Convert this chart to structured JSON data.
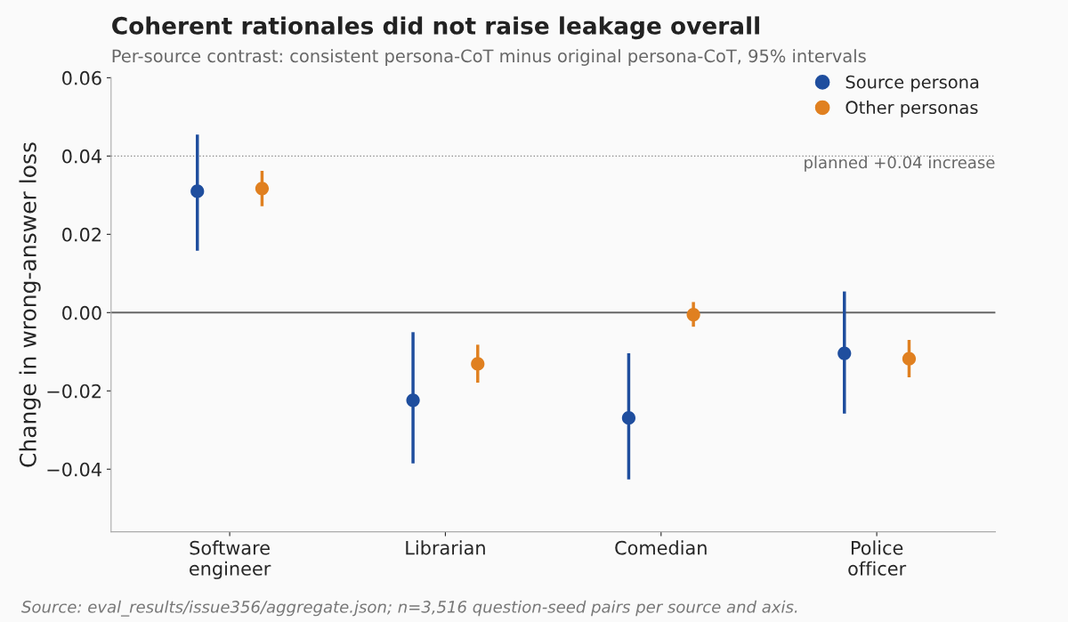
{
  "chart_data": {
    "type": "scatter",
    "title": "Coherent rationales did not raise leakage overall",
    "subtitle": "Per-source contrast: consistent persona-CoT minus original persona-CoT, 95% intervals",
    "ylabel": "Change in wrong-answer loss",
    "categories": [
      "Software\nengineer",
      "Librarian",
      "Comedian",
      "Police\nofficer"
    ],
    "series": [
      {
        "name": "Source persona",
        "color": "#1f4e9e",
        "values": [
          0.031,
          -0.0224,
          -0.0269,
          -0.0104
        ],
        "errors": [
          [
            0.0158,
            0.0455
          ],
          [
            -0.0385,
            -0.005
          ],
          [
            -0.0426,
            -0.0104
          ],
          [
            -0.0258,
            0.0054
          ]
        ]
      },
      {
        "name": "Other personas",
        "color": "#e08020",
        "values": [
          0.0317,
          -0.0131,
          -0.0005,
          -0.0118
        ],
        "errors": [
          [
            0.0272,
            0.0362
          ],
          [
            -0.0179,
            -0.0082
          ],
          [
            -0.0036,
            0.0027
          ],
          [
            -0.0165,
            -0.007
          ]
        ]
      }
    ],
    "ylim": [
      -0.056,
      0.06
    ],
    "yticks": [
      {
        "value": -0.04,
        "label": "−0.04"
      },
      {
        "value": -0.02,
        "label": "−0.02"
      },
      {
        "value": 0,
        "label": "0.00"
      },
      0.02,
      0.04,
      0.06
    ],
    "ref_lines": [
      {
        "axis": "y",
        "value": 0,
        "color": "#666666",
        "line_style": "solid"
      },
      {
        "axis": "y",
        "value": 0.04,
        "label": "planned +0.04 increase",
        "color": "#888888",
        "line_style": "dotted"
      }
    ],
    "marker": "circle",
    "legend": "top right",
    "grid": false,
    "annotations": [
      "Source: eval_results/issue356/aggregate.json; n=3,516 question-seed pairs per source and axis."
    ]
  }
}
